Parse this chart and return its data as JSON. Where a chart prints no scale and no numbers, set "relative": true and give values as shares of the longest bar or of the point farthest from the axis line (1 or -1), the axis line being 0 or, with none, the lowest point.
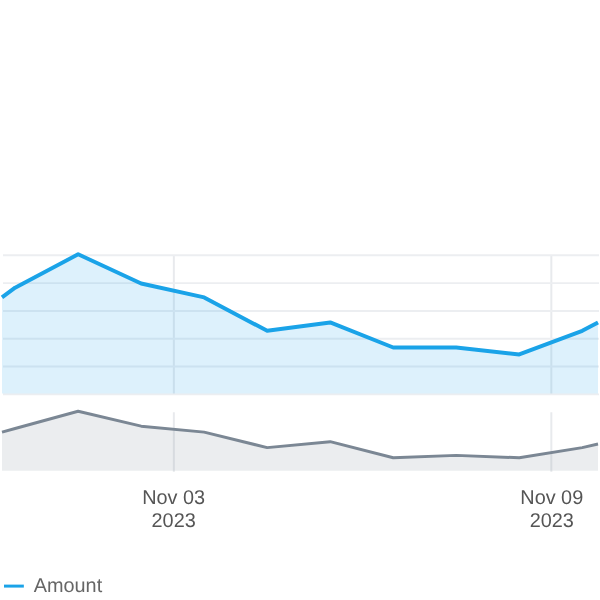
{
  "chart_data": [
    {
      "type": "area",
      "relative": true,
      "grid": true,
      "tick_labels": false,
      "legend": "bottom",
      "xlim": [
        "2023-10-31T07:00",
        "2023-11-09T18:00"
      ],
      "xticks": [
        {
          "value": "2023-11-03",
          "label": null
        },
        {
          "value": "2023-11-09",
          "label": null
        }
      ],
      "x": [
        "2023-10-31T07:00",
        "2023-10-31T12:00",
        "2023-11-01T12:00",
        "2023-11-02T12:00",
        "2023-11-03T12:00",
        "2023-11-04T12:00",
        "2023-11-05T12:00",
        "2023-11-06T12:00",
        "2023-11-07T12:00",
        "2023-11-08T12:00",
        "2023-11-09T12:00",
        "2023-11-09T18:00"
      ],
      "series": [
        {
          "name": "Amount",
          "color": "#1aa3e8",
          "values": [
            0.69,
            0.76,
            1,
            0.79,
            0.69,
            0.45,
            0.51,
            0.33,
            0.33,
            0.28,
            0.45,
            0.51
          ]
        }
      ]
    },
    {
      "type": "area",
      "relative": true,
      "grid": "x",
      "xlim": [
        "2023-10-31T07:00",
        "2023-11-09T18:00"
      ],
      "xticks": [
        {
          "value": "2023-11-03",
          "label": "Nov 03\n2023"
        },
        {
          "value": "2023-11-09",
          "label": "Nov 09\n2023"
        }
      ],
      "x": [
        "2023-10-31T07:00",
        "2023-10-31T12:00",
        "2023-11-01T12:00",
        "2023-11-02T12:00",
        "2023-11-03T12:00",
        "2023-11-04T12:00",
        "2023-11-05T12:00",
        "2023-11-06T12:00",
        "2023-11-07T12:00",
        "2023-11-08T12:00",
        "2023-11-09T12:00",
        "2023-11-09T18:00"
      ],
      "series": [
        {
          "color": "#7b8794",
          "values": [
            0.65,
            0.71,
            1,
            0.75,
            0.65,
            0.39,
            0.49,
            0.22,
            0.26,
            0.22,
            0.39,
            0.45
          ]
        }
      ]
    }
  ]
}
